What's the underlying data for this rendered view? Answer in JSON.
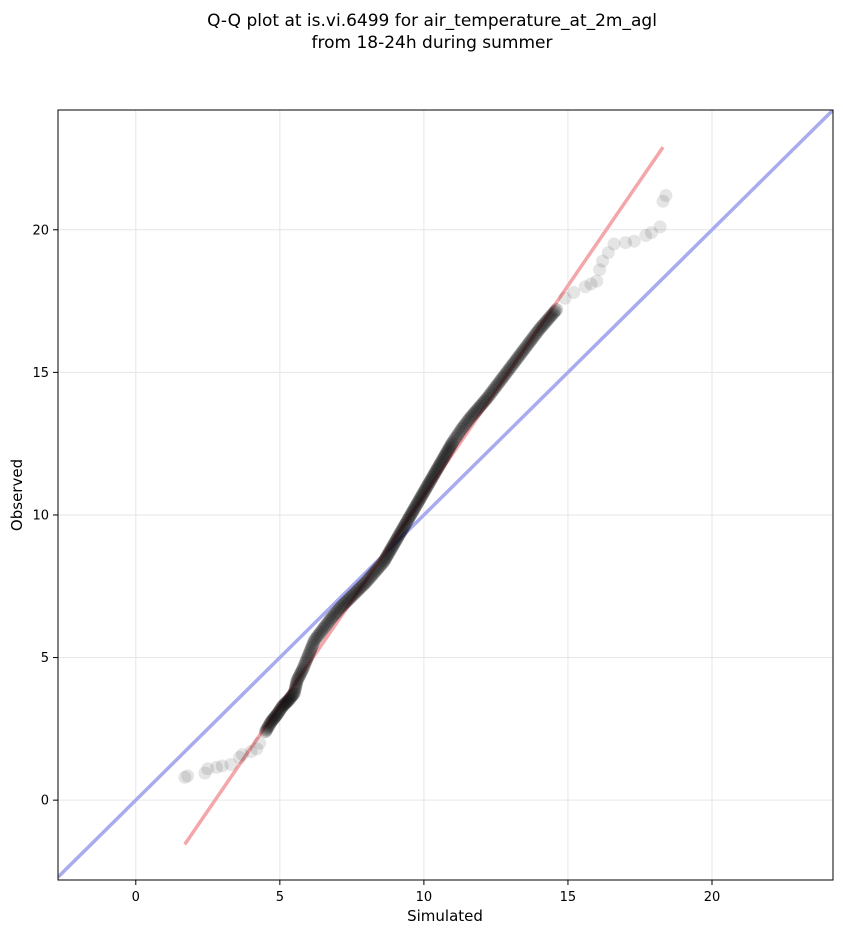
{
  "chart_data": {
    "type": "scatter",
    "title_lines": [
      "Q-Q plot at is.vi.6499 for air_temperature_at_2m_agl",
      "from 18-24h during summer"
    ],
    "xlabel": "Simulated",
    "ylabel": "Observed",
    "xlim": [
      -2.7,
      24.2
    ],
    "ylim": [
      -2.8,
      24.2
    ],
    "xticks": [
      0,
      5,
      10,
      15,
      20
    ],
    "yticks": [
      0,
      5,
      10,
      15,
      20
    ],
    "xtick_labels": [
      "0",
      "5",
      "10",
      "15",
      "20"
    ],
    "ytick_labels": [
      "0",
      "5",
      "10",
      "15",
      "20"
    ],
    "grid": true,
    "colors": {
      "points": "#000000",
      "fit_line": "#f4a6aa",
      "identity_line": "#a9abef",
      "grid": "#e6e6e6"
    },
    "identity_line": {
      "x": [
        -2.7,
        24.2
      ],
      "y": [
        -2.7,
        24.2
      ]
    },
    "fit_line": {
      "x": [
        1.7,
        18.3
      ],
      "y": [
        -1.55,
        22.9
      ]
    },
    "tail_points_low": {
      "x": [
        1.7,
        1.8,
        2.4,
        2.5,
        2.8,
        3.0,
        3.3,
        3.6,
        3.7,
        4.0,
        4.2,
        4.3
      ],
      "y": [
        0.8,
        0.85,
        0.95,
        1.1,
        1.15,
        1.2,
        1.25,
        1.5,
        1.6,
        1.7,
        1.8,
        2.0
      ]
    },
    "tail_points_high": {
      "x": [
        14.9,
        15.2,
        15.6,
        15.8,
        16.0,
        16.1,
        16.2,
        16.4,
        16.6,
        17.0,
        17.3,
        17.7,
        17.9,
        18.2,
        18.3,
        18.4
      ],
      "y": [
        17.6,
        17.8,
        18.0,
        18.1,
        18.2,
        18.6,
        18.9,
        19.2,
        19.5,
        19.55,
        19.6,
        19.8,
        19.9,
        20.1,
        21.0,
        21.2
      ]
    },
    "central_points": {
      "x": [
        4.5,
        4.7,
        4.9,
        5.1,
        5.3,
        5.5,
        5.6,
        5.8,
        6.0,
        6.2,
        6.5,
        6.8,
        7.1,
        7.4,
        7.7,
        8.0,
        8.3,
        8.6,
        8.8,
        9.0,
        9.2,
        9.4,
        9.6,
        9.8,
        10.0,
        10.2,
        10.4,
        10.6,
        10.8,
        11.0,
        11.3,
        11.6,
        11.9,
        12.2,
        12.5,
        12.8,
        13.1,
        13.4,
        13.7,
        14.0,
        14.3,
        14.6
      ],
      "y": [
        2.4,
        2.75,
        3.0,
        3.3,
        3.5,
        3.75,
        4.2,
        4.6,
        5.1,
        5.6,
        6.0,
        6.4,
        6.75,
        7.05,
        7.35,
        7.65,
        8.0,
        8.35,
        8.7,
        9.05,
        9.4,
        9.75,
        10.1,
        10.45,
        10.8,
        11.15,
        11.5,
        11.85,
        12.2,
        12.55,
        13.0,
        13.4,
        13.75,
        14.1,
        14.5,
        14.9,
        15.3,
        15.7,
        16.1,
        16.5,
        16.85,
        17.2
      ]
    }
  }
}
